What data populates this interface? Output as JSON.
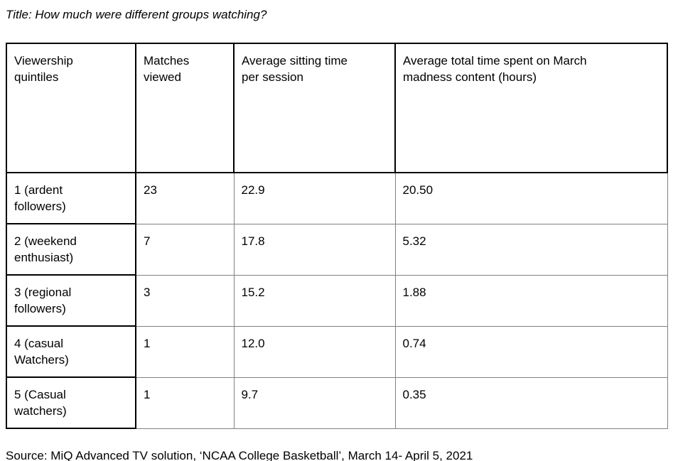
{
  "page": {
    "title": "Title: How much were different groups watching?",
    "source": "Source: MiQ Advanced TV solution, ‘NCAA College Basketball’, March 14- April 5, 2021"
  },
  "table": {
    "columns": [
      "Viewership quintiles",
      "Matches viewed",
      "Average sitting time per session",
      "Average total time spent on March madness content (hours)"
    ],
    "rows": [
      [
        "1 (ardent followers)",
        "23",
        "22.9",
        "20.50"
      ],
      [
        "2 (weekend enthusiast)",
        "7",
        "17.8",
        "5.32"
      ],
      [
        "3 (regional followers)",
        "3",
        "15.2",
        "1.88"
      ],
      [
        "4 (casual Watchers)",
        "1",
        "12.0",
        "0.74"
      ],
      [
        "5 (Casual watchers)",
        "1",
        "9.7",
        "0.35"
      ]
    ]
  },
  "chart_data": {
    "type": "table",
    "title": "How much were different groups watching?",
    "categories": [
      "1 (ardent followers)",
      "2 (weekend enthusiast)",
      "3 (regional followers)",
      "4 (casual Watchers)",
      "5 (Casual watchers)"
    ],
    "series": [
      {
        "name": "Matches viewed",
        "values": [
          23,
          7,
          3,
          1,
          1
        ]
      },
      {
        "name": "Average sitting time per session",
        "values": [
          22.9,
          17.8,
          15.2,
          12.0,
          9.7
        ]
      },
      {
        "name": "Average total time spent on March madness content (hours)",
        "values": [
          20.5,
          5.32,
          1.88,
          0.74,
          0.35
        ]
      }
    ],
    "source": "MiQ Advanced TV solution, ‘NCAA College Basketball’, March 14- April 5, 2021"
  },
  "colors": {
    "background": "#ffffff",
    "text": "#000000",
    "border_strong": "#000000",
    "border_light": "#808080"
  }
}
